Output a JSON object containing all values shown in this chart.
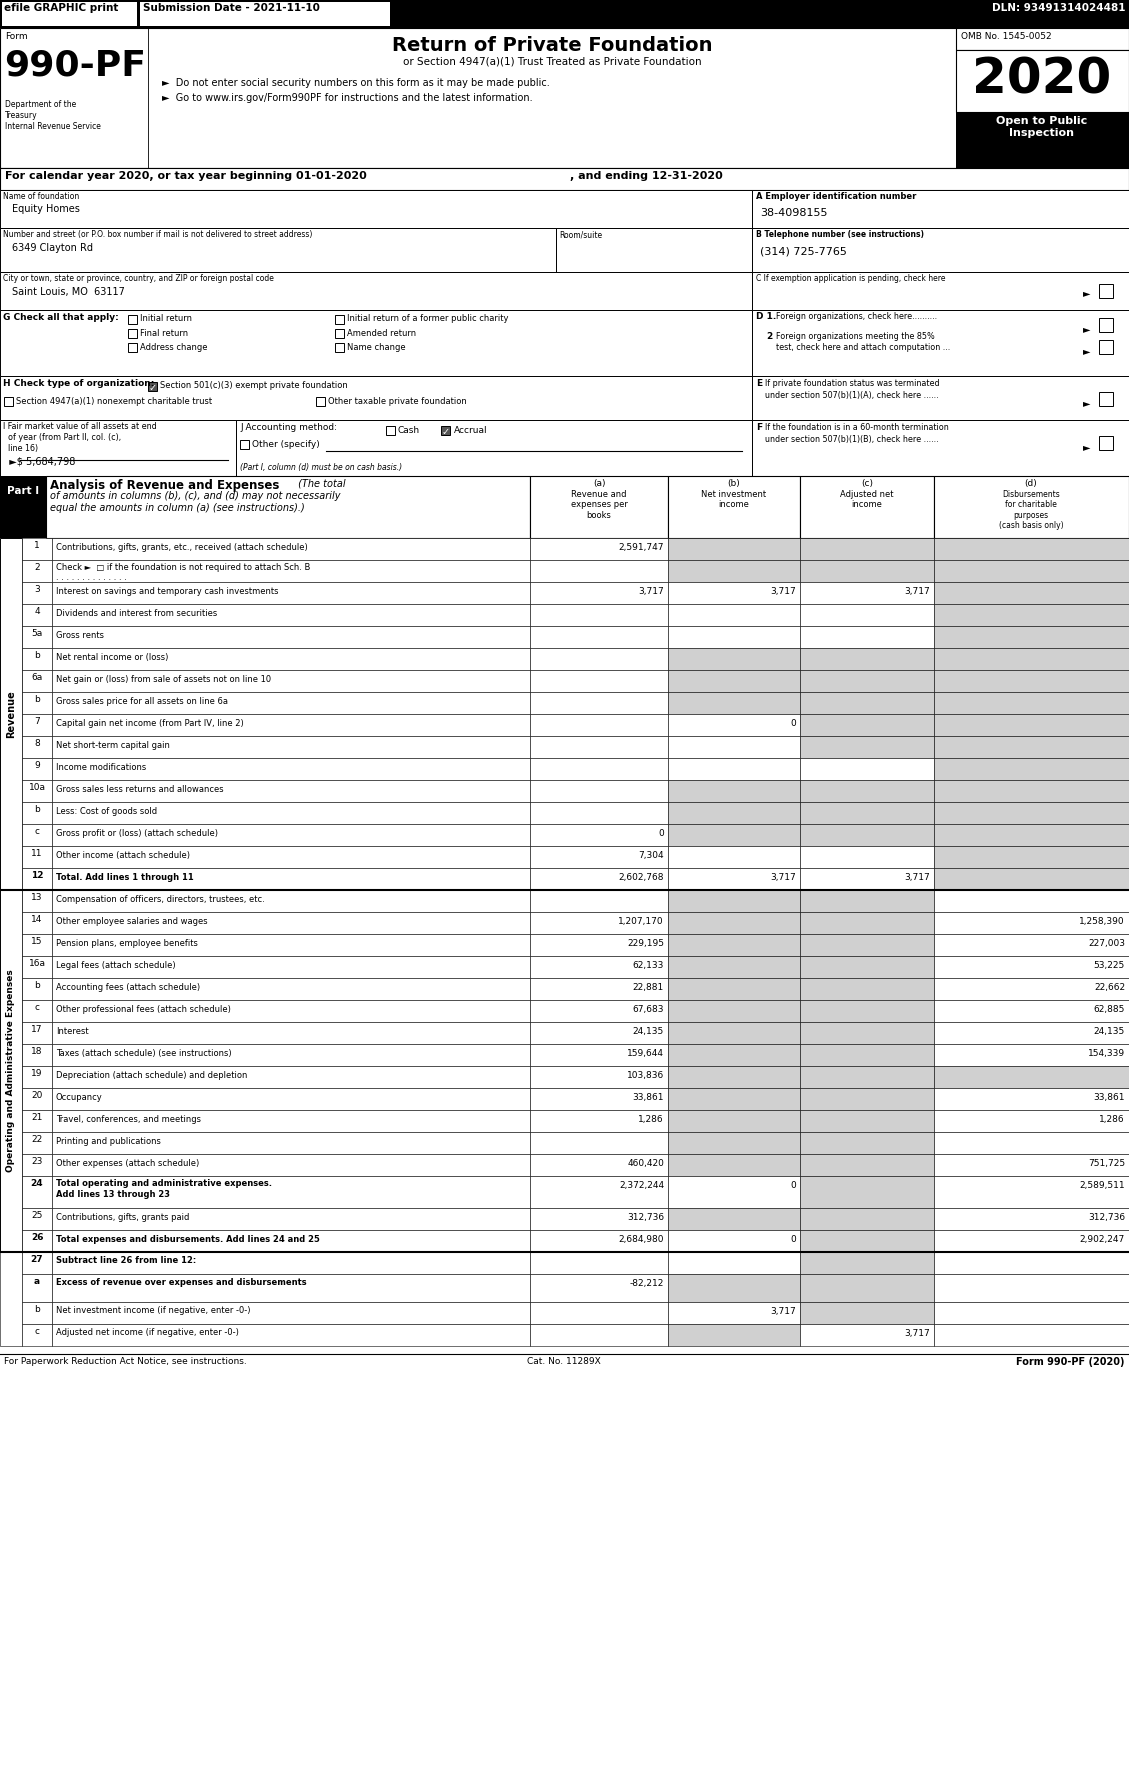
{
  "title_efile": "efile GRAPHIC print",
  "submission_date": "Submission Date - 2021-11-10",
  "dln": "DLN: 93491314024481",
  "omb": "OMB No. 1545-0052",
  "return_title": "Return of Private Foundation",
  "return_subtitle": "or Section 4947(a)(1) Trust Treated as Private Foundation",
  "bullet1": "►  Do not enter social security numbers on this form as it may be made public.",
  "bullet2": "►  Go to www.irs.gov/Form990PF for instructions and the latest information.",
  "bullet2_url": "www.irs.gov/Form990PF",
  "year": "2020",
  "open_text": "Open to Public\nInspection",
  "dept1": "Department of the",
  "dept2": "Treasury",
  "dept3": "Internal Revenue Service",
  "cal_year_text": "For calendar year 2020, or tax year beginning 01-01-2020",
  "ending_text": ", and ending 12-31-2020",
  "name_label": "Name of foundation",
  "name_value": "Equity Homes",
  "ein_label": "A Employer identification number",
  "ein_value": "38-4098155",
  "addr_label": "Number and street (or P.O. box number if mail is not delivered to street address)",
  "addr_value": "6349 Clayton Rd",
  "room_label": "Room/suite",
  "phone_label": "B Telephone number (see instructions)",
  "phone_value": "(314) 725-7765",
  "city_label": "City or town, state or province, country, and ZIP or foreign postal code",
  "city_value": "Saint Louis, MO  63117",
  "i_value": "5,684,798",
  "footer_left": "For Paperwork Reduction Act Notice, see instructions.",
  "footer_cat": "Cat. No. 11289X",
  "footer_form": "Form 990-PF (2020)",
  "rows": [
    {
      "num": "1",
      "label": "Contributions, gifts, grants, etc., received (attach schedule)",
      "dots": false,
      "a": "2,591,747",
      "b": "",
      "c": "",
      "d": "",
      "b_gray": true,
      "c_gray": true,
      "d_gray": true
    },
    {
      "num": "2",
      "label": "Check ►  □ if the foundation is not required to attach Sch. B",
      "label2": ". . . . . . . . . . . . . .",
      "dots": false,
      "a": "",
      "b": "",
      "c": "",
      "d": "",
      "b_gray": true,
      "c_gray": true,
      "d_gray": true
    },
    {
      "num": "3",
      "label": "Interest on savings and temporary cash investments",
      "dots": false,
      "a": "3,717",
      "b": "3,717",
      "c": "3,717",
      "d": "",
      "b_gray": false,
      "c_gray": false,
      "d_gray": true
    },
    {
      "num": "4",
      "label": "Dividends and interest from securities",
      "dots": true,
      "a": "",
      "b": "",
      "c": "",
      "d": "",
      "b_gray": false,
      "c_gray": false,
      "d_gray": true
    },
    {
      "num": "5a",
      "label": "Gross rents",
      "dots": true,
      "a": "",
      "b": "",
      "c": "",
      "d": "",
      "b_gray": false,
      "c_gray": false,
      "d_gray": true
    },
    {
      "num": "b",
      "label": "Net rental income or (loss)",
      "dots": false,
      "a": "",
      "b": "",
      "c": "",
      "d": "",
      "b_gray": true,
      "c_gray": true,
      "d_gray": true
    },
    {
      "num": "6a",
      "label": "Net gain or (loss) from sale of assets not on line 10",
      "dots": false,
      "a": "",
      "b": "",
      "c": "",
      "d": "",
      "b_gray": true,
      "c_gray": true,
      "d_gray": true
    },
    {
      "num": "b",
      "label": "Gross sales price for all assets on line 6a",
      "dots": false,
      "a": "",
      "b": "",
      "c": "",
      "d": "",
      "b_gray": true,
      "c_gray": true,
      "d_gray": true
    },
    {
      "num": "7",
      "label": "Capital gain net income (from Part IV, line 2)",
      "dots": true,
      "a": "",
      "b": "0",
      "c": "",
      "d": "",
      "b_gray": false,
      "c_gray": true,
      "d_gray": true
    },
    {
      "num": "8",
      "label": "Net short-term capital gain",
      "dots": true,
      "a": "",
      "b": "",
      "c": "",
      "d": "",
      "b_gray": false,
      "c_gray": true,
      "d_gray": true
    },
    {
      "num": "9",
      "label": "Income modifications",
      "dots": true,
      "a": "",
      "b": "",
      "c": "",
      "d": "",
      "b_gray": false,
      "c_gray": false,
      "d_gray": true
    },
    {
      "num": "10a",
      "label": "Gross sales less returns and allowances",
      "dots": false,
      "a": "",
      "b": "",
      "c": "",
      "d": "",
      "b_gray": true,
      "c_gray": true,
      "d_gray": true
    },
    {
      "num": "b",
      "label": "Less: Cost of goods sold",
      "dots": true,
      "a": "",
      "b": "",
      "c": "",
      "d": "",
      "b_gray": true,
      "c_gray": true,
      "d_gray": true
    },
    {
      "num": "c",
      "label": "Gross profit or (loss) (attach schedule)",
      "dots": true,
      "a": "0",
      "b": "",
      "c": "",
      "d": "",
      "b_gray": true,
      "c_gray": true,
      "d_gray": true
    },
    {
      "num": "11",
      "label": "Other income (attach schedule)",
      "dots": true,
      "a": "7,304",
      "b": "",
      "c": "",
      "d": "",
      "b_gray": false,
      "c_gray": false,
      "d_gray": true
    },
    {
      "num": "12",
      "label": "Total. Add lines 1 through 11",
      "dots": true,
      "bold": true,
      "a": "2,602,768",
      "b": "3,717",
      "c": "3,717",
      "d": "",
      "b_gray": false,
      "c_gray": false,
      "d_gray": true
    }
  ],
  "expense_rows": [
    {
      "num": "13",
      "label": "Compensation of officers, directors, trustees, etc.",
      "dots": false,
      "a": "",
      "b": "",
      "c": "",
      "d": "",
      "b_gray": true,
      "c_gray": true,
      "d_gray": false
    },
    {
      "num": "14",
      "label": "Other employee salaries and wages",
      "dots": true,
      "a": "1,207,170",
      "b": "",
      "c": "",
      "d": "1,258,390",
      "b_gray": true,
      "c_gray": true,
      "d_gray": false
    },
    {
      "num": "15",
      "label": "Pension plans, employee benefits",
      "dots": true,
      "a": "229,195",
      "b": "",
      "c": "",
      "d": "227,003",
      "b_gray": true,
      "c_gray": true,
      "d_gray": false
    },
    {
      "num": "16a",
      "label": "Legal fees (attach schedule)",
      "dots": true,
      "a": "62,133",
      "b": "",
      "c": "",
      "d": "53,225",
      "b_gray": true,
      "c_gray": true,
      "d_gray": false
    },
    {
      "num": "b",
      "label": "Accounting fees (attach schedule)",
      "dots": true,
      "a": "22,881",
      "b": "",
      "c": "",
      "d": "22,662",
      "b_gray": true,
      "c_gray": true,
      "d_gray": false
    },
    {
      "num": "c",
      "label": "Other professional fees (attach schedule)",
      "dots": true,
      "a": "67,683",
      "b": "",
      "c": "",
      "d": "62,885",
      "b_gray": true,
      "c_gray": true,
      "d_gray": false
    },
    {
      "num": "17",
      "label": "Interest",
      "dots": true,
      "a": "24,135",
      "b": "",
      "c": "",
      "d": "24,135",
      "b_gray": true,
      "c_gray": true,
      "d_gray": false
    },
    {
      "num": "18",
      "label": "Taxes (attach schedule) (see instructions)",
      "dots": true,
      "a": "159,644",
      "b": "",
      "c": "",
      "d": "154,339",
      "b_gray": true,
      "c_gray": true,
      "d_gray": false
    },
    {
      "num": "19",
      "label": "Depreciation (attach schedule) and depletion",
      "dots": true,
      "a": "103,836",
      "b": "",
      "c": "",
      "d": "",
      "b_gray": true,
      "c_gray": true,
      "d_gray": true
    },
    {
      "num": "20",
      "label": "Occupancy",
      "dots": true,
      "a": "33,861",
      "b": "",
      "c": "",
      "d": "33,861",
      "b_gray": true,
      "c_gray": true,
      "d_gray": false
    },
    {
      "num": "21",
      "label": "Travel, conferences, and meetings",
      "dots": true,
      "a": "1,286",
      "b": "",
      "c": "",
      "d": "1,286",
      "b_gray": true,
      "c_gray": true,
      "d_gray": false
    },
    {
      "num": "22",
      "label": "Printing and publications",
      "dots": true,
      "a": "",
      "b": "",
      "c": "",
      "d": "",
      "b_gray": true,
      "c_gray": true,
      "d_gray": false
    },
    {
      "num": "23",
      "label": "Other expenses (attach schedule)",
      "dots": true,
      "a": "460,420",
      "b": "",
      "c": "",
      "d": "751,725",
      "b_gray": true,
      "c_gray": true,
      "d_gray": false
    },
    {
      "num": "24",
      "label": "Total operating and administrative expenses.",
      "label2": "Add lines 13 through 23",
      "dots": true,
      "bold": true,
      "a": "2,372,244",
      "b": "0",
      "c": "",
      "d": "2,589,511",
      "b_gray": false,
      "c_gray": true,
      "d_gray": false
    },
    {
      "num": "25",
      "label": "Contributions, gifts, grants paid",
      "dots": true,
      "a": "312,736",
      "b": "",
      "c": "",
      "d": "312,736",
      "b_gray": true,
      "c_gray": true,
      "d_gray": false
    },
    {
      "num": "26",
      "label": "Total expenses and disbursements. Add lines 24 and 25",
      "dots": false,
      "bold": true,
      "a": "2,684,980",
      "b": "0",
      "c": "",
      "d": "2,902,247",
      "b_gray": false,
      "c_gray": true,
      "d_gray": false
    }
  ],
  "bot_rows": [
    {
      "num": "27",
      "label": "Subtract line 26 from line 12:",
      "bold": true,
      "a": "",
      "b": "",
      "c": "",
      "d": "",
      "b_gray": false,
      "c_gray": true,
      "d_gray": false
    },
    {
      "num": "a",
      "label": "Excess of revenue over expenses and disbursements",
      "bold": true,
      "a": "-82,212",
      "b": "",
      "c": "",
      "d": "",
      "b_gray": true,
      "c_gray": true,
      "d_gray": false
    },
    {
      "num": "b",
      "label": "Net investment income (if negative, enter -0-)",
      "dots": true,
      "bold": false,
      "a": "",
      "b": "3,717",
      "c": "",
      "d": "",
      "b_gray": false,
      "c_gray": true,
      "d_gray": false
    },
    {
      "num": "c",
      "label": "Adjusted net income (if negative, enter -0-)",
      "dots": true,
      "bold": false,
      "a": "",
      "b": "",
      "c": "3,717",
      "d": "",
      "b_gray": true,
      "c_gray": false,
      "d_gray": false
    }
  ]
}
